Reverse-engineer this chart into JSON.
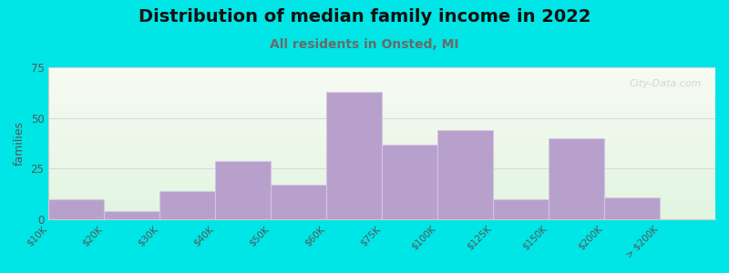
{
  "categories": [
    "$10K",
    "$20K",
    "$30K",
    "$40K",
    "$50K",
    "$60K",
    "$75K",
    "$100K",
    "$125K",
    "$150K",
    "$200K",
    "> $200K"
  ],
  "values": [
    10,
    4,
    14,
    29,
    17,
    63,
    37,
    44,
    10,
    40,
    11,
    0
  ],
  "bar_color": "#b8a0cc",
  "bar_edgecolor": "#d4c4e0",
  "title": "Distribution of median family income in 2022",
  "subtitle": "All residents in Onsted, MI",
  "ylabel": "families",
  "ylim": [
    0,
    75
  ],
  "yticks": [
    0,
    25,
    50,
    75
  ],
  "figure_bg": "#00e5e5",
  "title_fontsize": 14,
  "subtitle_fontsize": 10,
  "subtitle_color": "#6a6a6a",
  "watermark": "City-Data.com"
}
